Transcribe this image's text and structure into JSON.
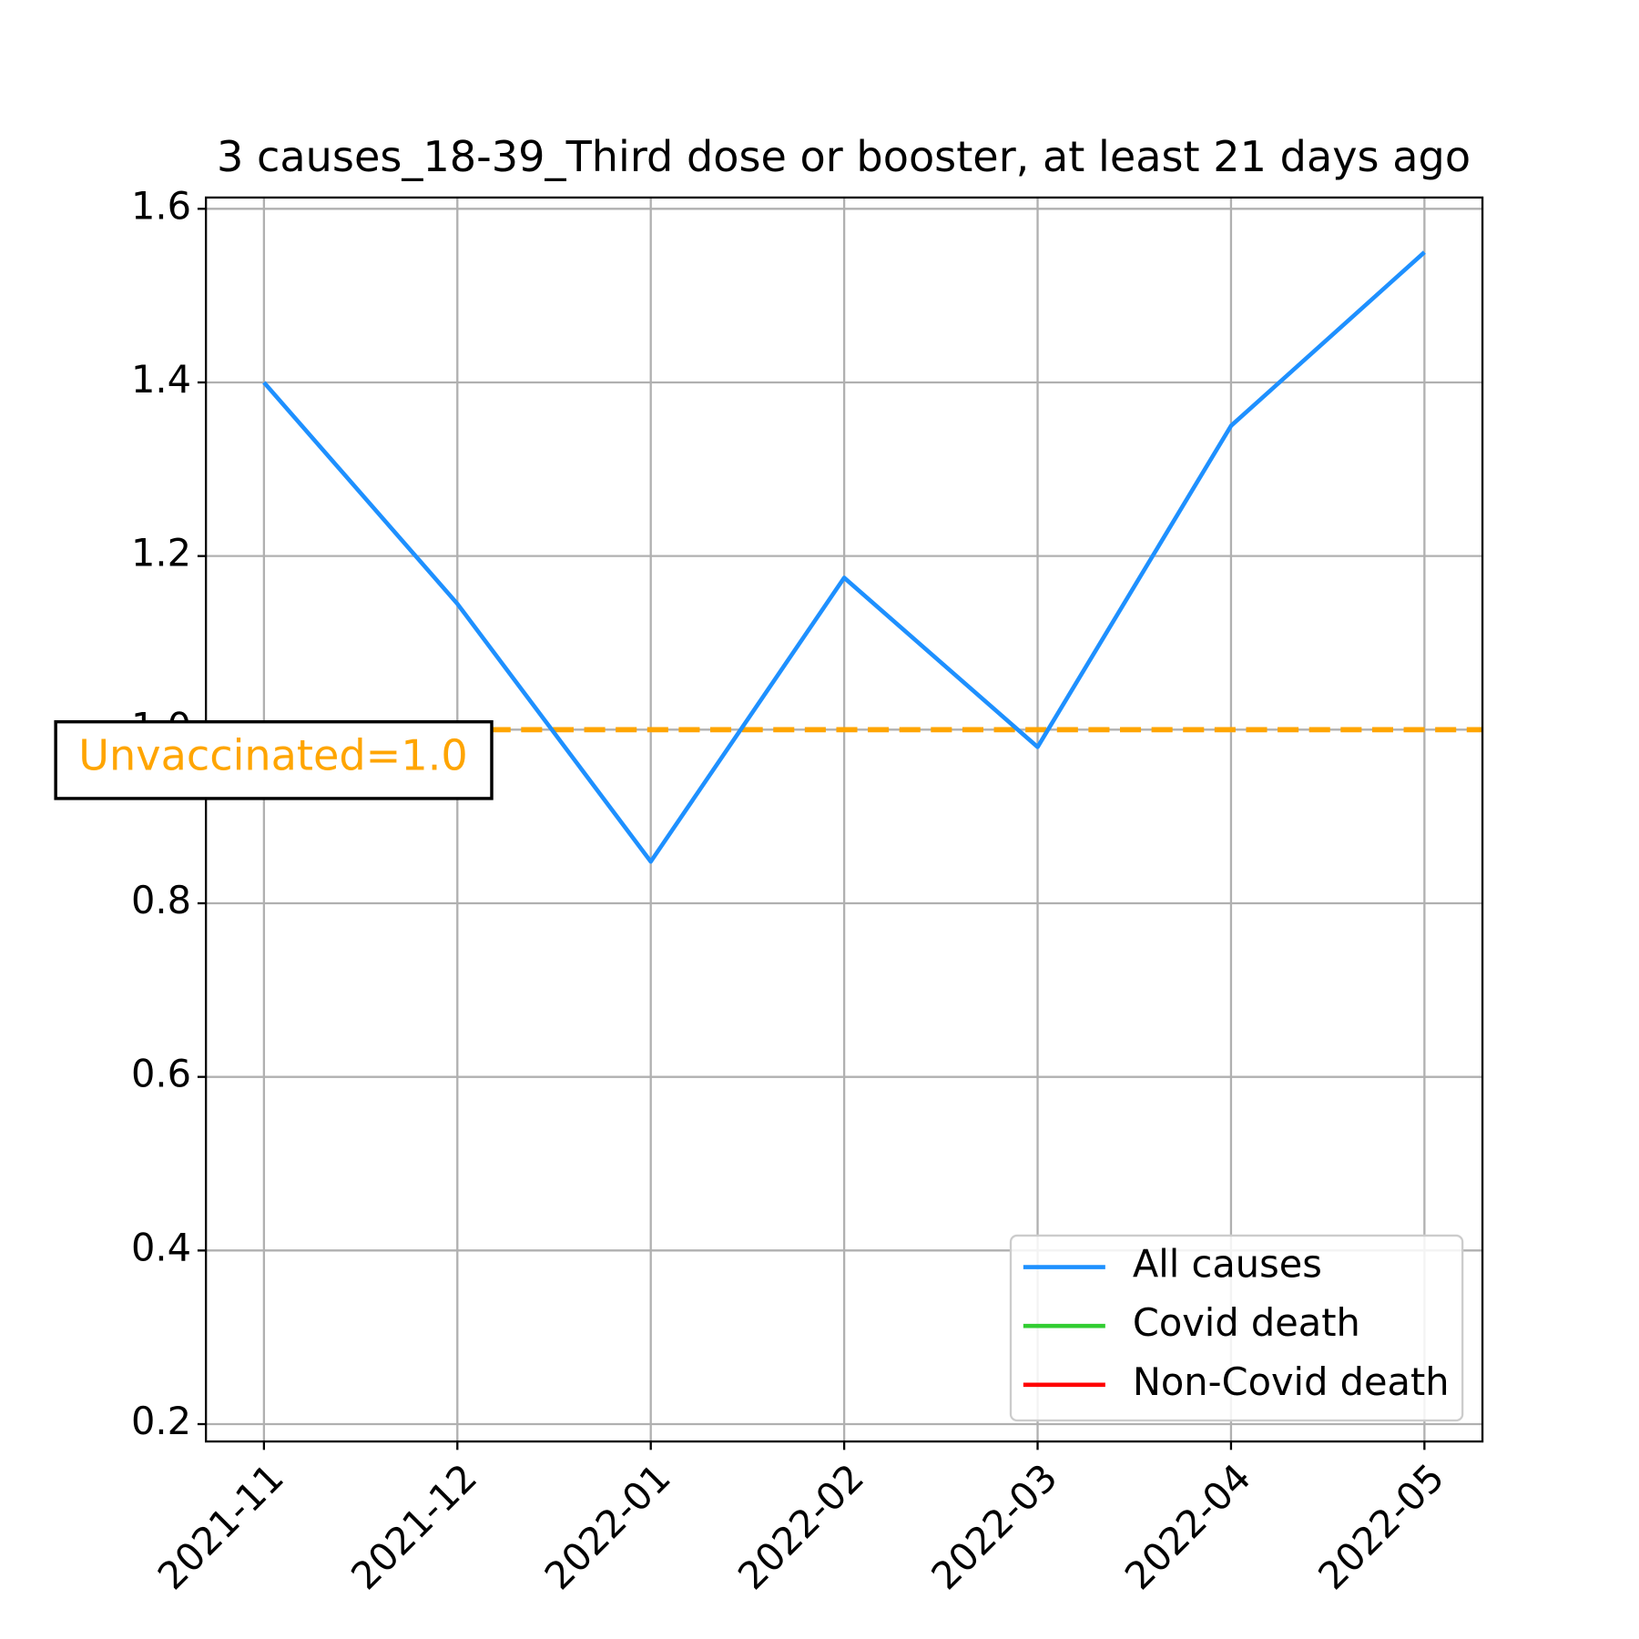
{
  "chart_data": {
    "type": "line",
    "title": "3 causes_18-39_Third dose or booster, at least 21 days ago",
    "categories": [
      "2021-11",
      "2021-12",
      "2022-01",
      "2022-02",
      "2022-03",
      "2022-04",
      "2022-05"
    ],
    "series": [
      {
        "name": "All causes",
        "color": "#1e90ff",
        "values": [
          1.4,
          1.145,
          0.848,
          1.175,
          0.98,
          1.35,
          1.55
        ]
      },
      {
        "name": "Covid death",
        "color": "#32cd32",
        "values": [
          null,
          null,
          null,
          null,
          null,
          null,
          null
        ]
      },
      {
        "name": "Non-Covid death",
        "color": "#ff0000",
        "values": [
          null,
          null,
          null,
          null,
          null,
          null,
          null
        ]
      }
    ],
    "ylim": [
      0.18,
      1.613
    ],
    "yticks": [
      0.2,
      0.4,
      0.6,
      0.8,
      {
        "value": 1,
        "label": "1.0"
      },
      1.2,
      1.4,
      1.6
    ],
    "grid": true,
    "legend": "lower right",
    "hline": {
      "value": 1,
      "color": "#ffa500",
      "label": "Unvaccinated=1.0"
    }
  }
}
